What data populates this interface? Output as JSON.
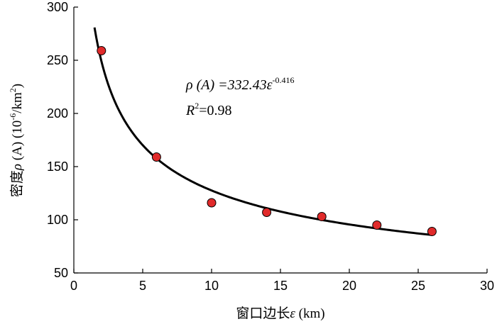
{
  "chart_data": {
    "type": "scatter",
    "xlabel_prefix": "窗口边长",
    "xlabel_symbol": "ε",
    "xlabel_unit": " (km)",
    "ylabel_prefix": "密度",
    "ylabel_symbol": "ρ",
    "ylabel_mid": " (A) (10",
    "ylabel_exp1": "-6",
    "ylabel_mid2": "/km",
    "ylabel_exp2": "2",
    "ylabel_end": ")",
    "xlim": [
      0,
      30
    ],
    "ylim": [
      50,
      300
    ],
    "xticks": [
      0,
      5,
      10,
      15,
      20,
      25,
      30
    ],
    "yticks": [
      50,
      100,
      150,
      200,
      250,
      300
    ],
    "grid": false,
    "points": {
      "x": [
        2,
        6,
        10,
        14,
        18,
        22,
        26
      ],
      "y": [
        259,
        159,
        116,
        107,
        103,
        95,
        89
      ],
      "color": "#e02a2a"
    },
    "fit": {
      "a": 332.43,
      "b": -0.416,
      "x_range": [
        1.5,
        26
      ],
      "color": "#000000"
    },
    "annotation": {
      "line1_pre": "ρ (A) =332.43ε",
      "line1_exp": "-0.416",
      "line2_r": "R",
      "line2_exp": "2",
      "line2_val": "=0.98"
    }
  }
}
